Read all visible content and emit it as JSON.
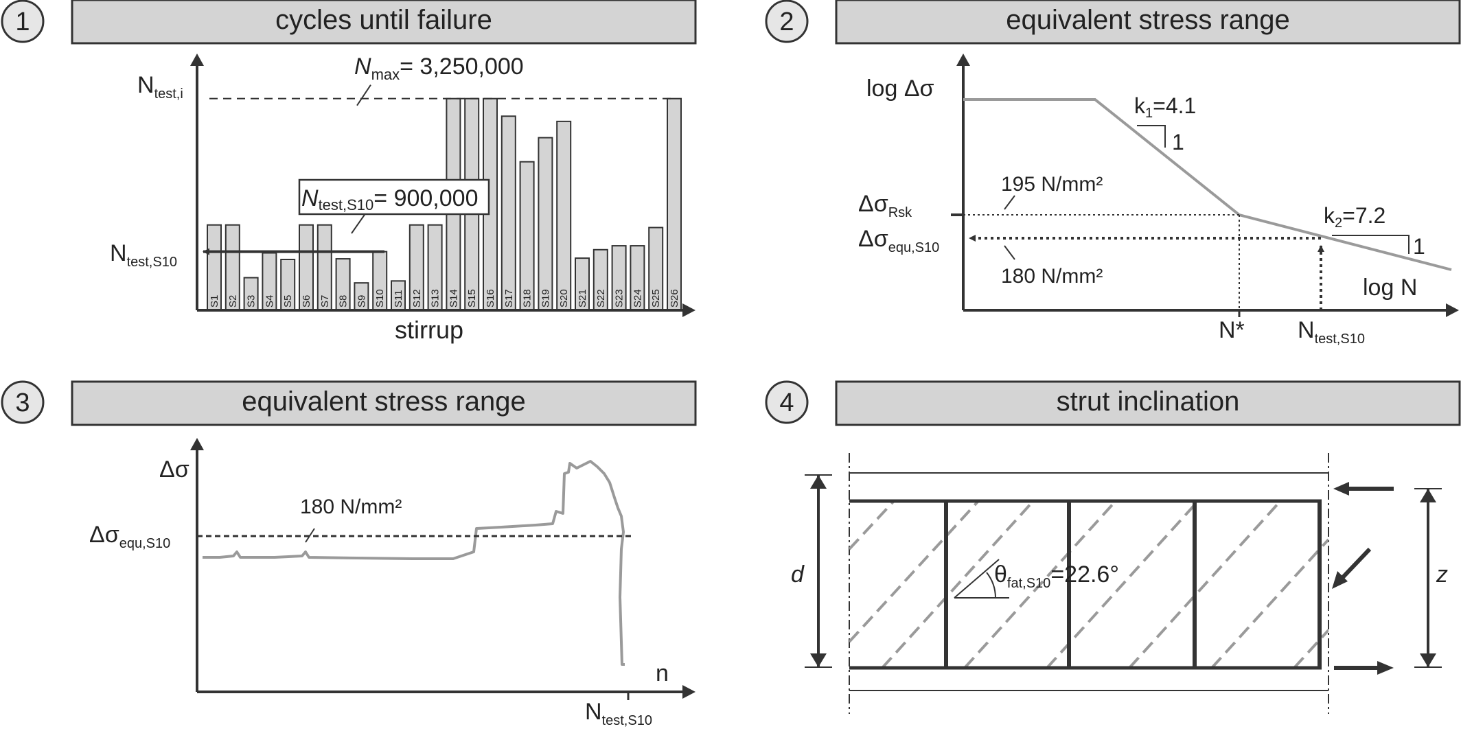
{
  "panels": [
    {
      "number": "1",
      "title": "cycles until failure"
    },
    {
      "number": "2",
      "title": "equivalent stress range"
    },
    {
      "number": "3",
      "title": "equivalent stress range"
    },
    {
      "number": "4",
      "title": "strut inclination"
    }
  ],
  "chart_data": [
    {
      "type": "bar",
      "xlabel": "stirrup",
      "ylabel": {
        "main": "N",
        "sub": "test,i"
      },
      "categories": [
        "S1",
        "S2",
        "S3",
        "S4",
        "S5",
        "S6",
        "S7",
        "S8",
        "S9",
        "S10",
        "S11",
        "S12",
        "S13",
        "S14",
        "S15",
        "S16",
        "S17",
        "S18",
        "S19",
        "S20",
        "S21",
        "S22",
        "S23",
        "S24",
        "S25",
        "S26"
      ],
      "values": [
        1310000,
        1310000,
        500000,
        880000,
        780000,
        1310000,
        1310000,
        790000,
        420000,
        900000,
        450000,
        1310000,
        1310000,
        3250000,
        3250000,
        3250000,
        2980000,
        2280000,
        2650000,
        2900000,
        800000,
        930000,
        990000,
        990000,
        1270000,
        3250000
      ],
      "ylim": [
        0,
        3900000
      ],
      "max_line": {
        "label_main": "N",
        "label_sub": "max",
        "label_value": "= 3,250,000",
        "value": 3250000
      },
      "s10_line": {
        "label_main": "N",
        "label_sub": "test,S10",
        "label_value": "= 900,000",
        "axis_main": "N",
        "axis_sub": "test,S10",
        "value": 900000
      }
    },
    {
      "type": "line",
      "xlabel": "log N",
      "ylabel": "log Δσ",
      "k1": {
        "main": "k",
        "sub": "1",
        "value": "=4.1",
        "slope": "1"
      },
      "k2": {
        "main": "k",
        "sub": "2",
        "value": "=7.2",
        "slope": "1"
      },
      "rsk": {
        "main": "Δσ",
        "sub": "Rsk",
        "value_label": "195 N/mm²"
      },
      "equ": {
        "main": "Δσ",
        "sub": "equ,S10",
        "value_label": "180 N/mm²"
      },
      "nstar": "N*",
      "ntest": {
        "main": "N",
        "sub": "test,S10"
      }
    },
    {
      "type": "line",
      "xlabel": "n",
      "ylabel": "Δσ",
      "equ": {
        "main": "Δσ",
        "sub": "equ,S10",
        "value_label": "180 N/mm²"
      },
      "ntest": {
        "main": "N",
        "sub": "test,S10"
      }
    },
    {
      "type": "diagram",
      "d_label": "d",
      "z_label": "z",
      "theta": {
        "main": "θ",
        "sub": "fat,S10",
        "value": "=22.6°"
      }
    }
  ]
}
